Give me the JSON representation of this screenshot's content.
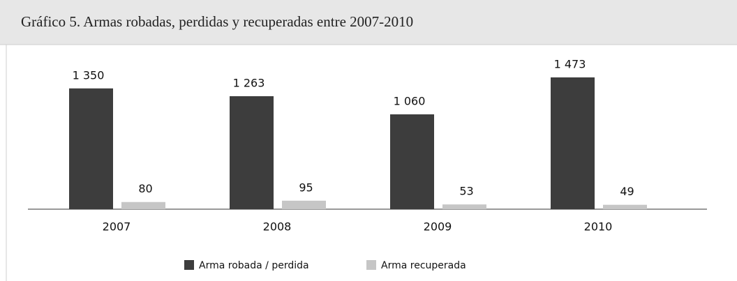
{
  "chart_data": {
    "type": "bar",
    "title": "Gráfico 5. Armas robadas, perdidas y recuperadas entre 2007-2010",
    "categories": [
      "2007",
      "2008",
      "2009",
      "2010"
    ],
    "series": [
      {
        "name": "Arma robada / perdida",
        "color": "#3d3d3d",
        "values": [
          1350,
          1263,
          1060,
          1473
        ],
        "value_labels": [
          "1 350",
          "1 263",
          "1 060",
          "1 473"
        ]
      },
      {
        "name": "Arma recuperada",
        "color": "#c6c6c6",
        "values": [
          80,
          95,
          53,
          49
        ]
      }
    ]
  }
}
